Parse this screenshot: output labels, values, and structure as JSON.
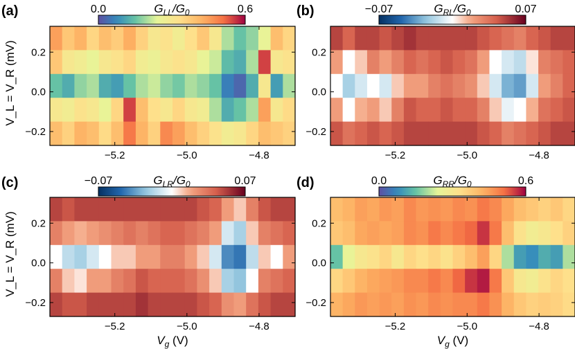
{
  "figure": {
    "xlabel_var": "V",
    "xlabel_sub": "g",
    "xlabel_unit": " (V)",
    "ylabel_text": "V_L = V_R (mV)"
  },
  "chart_data": [
    {
      "type": "heatmap",
      "panel_label": "(a)",
      "quantity": "G",
      "quantity_sub": "LL",
      "quantity_norm": "/G",
      "quantity_norm_sub": "0",
      "colormap": "spectral",
      "clim": [
        0.0,
        0.6
      ],
      "clim_labels": [
        "0.0",
        "0.6"
      ],
      "x": {
        "range": [
          -5.38,
          -4.7
        ],
        "ticks": [
          -5.2,
          -5.0,
          -4.8
        ],
        "tick_labels": [
          "−5.2",
          "−5.0",
          "−4.8"
        ]
      },
      "y": {
        "range": [
          -0.27,
          0.33
        ],
        "ticks": [
          -0.2,
          0.0,
          0.2
        ],
        "tick_labels": [
          "−0.2",
          "0.0",
          "0.2"
        ]
      },
      "cells": [
        [
          0.45,
          0.38,
          0.42,
          0.35,
          0.4,
          0.37,
          0.43,
          0.36,
          0.3,
          0.32,
          0.28,
          0.33,
          0.38,
          0.3,
          0.2,
          0.15,
          0.18,
          0.25,
          0.4,
          0.35
        ],
        [
          0.38,
          0.3,
          0.28,
          0.25,
          0.3,
          0.32,
          0.35,
          0.28,
          0.26,
          0.3,
          0.32,
          0.3,
          0.25,
          0.22,
          0.14,
          0.12,
          0.2,
          0.55,
          0.3,
          0.32
        ],
        [
          0.15,
          0.12,
          0.18,
          0.2,
          0.12,
          0.1,
          0.15,
          0.2,
          0.22,
          0.18,
          0.16,
          0.2,
          0.18,
          0.15,
          0.06,
          0.03,
          0.12,
          0.3,
          0.1,
          0.2
        ],
        [
          0.3,
          0.28,
          0.32,
          0.3,
          0.25,
          0.35,
          0.55,
          0.4,
          0.33,
          0.3,
          0.35,
          0.3,
          0.28,
          0.2,
          0.12,
          0.15,
          0.2,
          0.45,
          0.3,
          0.34
        ],
        [
          0.4,
          0.36,
          0.42,
          0.4,
          0.34,
          0.4,
          0.5,
          0.42,
          0.36,
          0.48,
          0.45,
          0.4,
          0.36,
          0.32,
          0.28,
          0.3,
          0.35,
          0.4,
          0.38,
          0.36
        ]
      ]
    },
    {
      "type": "heatmap",
      "panel_label": "(b)",
      "quantity": "G",
      "quantity_sub": "RL",
      "quantity_norm": "/G",
      "quantity_norm_sub": "0",
      "colormap": "diverging-rdbu",
      "clim": [
        -0.07,
        0.07
      ],
      "clim_labels": [
        "−0.07",
        "0.07"
      ],
      "x": {
        "range": [
          -5.38,
          -4.7
        ],
        "ticks": [
          -5.2,
          -5.0,
          -4.8
        ],
        "tick_labels": [
          "−5.2",
          "−5.0",
          "−4.8"
        ]
      },
      "y": {
        "range": [
          -0.27,
          0.33
        ],
        "ticks": [
          -0.2,
          0.0,
          0.2
        ],
        "tick_labels": [
          "−0.2",
          "0.0",
          "0.2"
        ]
      },
      "cells": [
        [
          0.05,
          0.04,
          0.05,
          0.05,
          0.045,
          0.05,
          0.055,
          0.05,
          0.05,
          0.05,
          0.05,
          0.05,
          0.045,
          0.04,
          0.035,
          0.03,
          0.04,
          0.045,
          0.05,
          0.05
        ],
        [
          0.02,
          0.0,
          0.01,
          0.03,
          0.02,
          0.03,
          0.04,
          0.035,
          0.04,
          0.045,
          0.04,
          0.035,
          0.02,
          0.0,
          -0.01,
          -0.015,
          0.005,
          0.03,
          0.035,
          0.04
        ],
        [
          0.0,
          -0.02,
          -0.01,
          0.0,
          -0.01,
          0.01,
          0.02,
          0.02,
          0.03,
          0.035,
          0.03,
          0.025,
          0.01,
          -0.01,
          -0.03,
          -0.035,
          -0.01,
          0.02,
          0.03,
          0.04
        ],
        [
          0.02,
          0.0,
          0.015,
          0.02,
          0.01,
          0.03,
          0.045,
          0.04,
          0.04,
          0.045,
          0.04,
          0.04,
          0.03,
          0.01,
          -0.005,
          0.0,
          0.015,
          0.035,
          0.04,
          0.045
        ],
        [
          0.045,
          0.035,
          0.04,
          0.045,
          0.04,
          0.045,
          0.05,
          0.05,
          0.05,
          0.05,
          0.05,
          0.05,
          0.045,
          0.04,
          0.03,
          0.035,
          0.04,
          0.045,
          0.05,
          0.05
        ]
      ]
    },
    {
      "type": "heatmap",
      "panel_label": "(c)",
      "quantity": "G",
      "quantity_sub": "LR",
      "quantity_norm": "/G",
      "quantity_norm_sub": "0",
      "colormap": "diverging-rdbu",
      "clim": [
        -0.07,
        0.07
      ],
      "clim_labels": [
        "−0.07",
        "0.07"
      ],
      "x": {
        "range": [
          -5.38,
          -4.7
        ],
        "ticks": [
          -5.2,
          -5.0,
          -4.8
        ],
        "tick_labels": [
          "−5.2",
          "−5.0",
          "−4.8"
        ]
      },
      "y": {
        "range": [
          -0.27,
          0.33
        ],
        "ticks": [
          -0.2,
          0.0,
          0.2
        ],
        "tick_labels": [
          "−0.2",
          "0.0",
          "0.2"
        ]
      },
      "cells": [
        [
          0.05,
          0.045,
          0.05,
          0.05,
          0.05,
          0.05,
          0.05,
          0.05,
          0.05,
          0.05,
          0.05,
          0.05,
          0.045,
          0.04,
          0.02,
          0.01,
          0.03,
          0.045,
          0.05,
          0.05
        ],
        [
          0.03,
          0.02,
          0.015,
          0.02,
          0.025,
          0.03,
          0.035,
          0.03,
          0.035,
          0.04,
          0.04,
          0.035,
          0.03,
          0.02,
          -0.01,
          -0.02,
          0.01,
          0.03,
          0.035,
          0.04
        ],
        [
          0.0,
          -0.015,
          -0.02,
          -0.01,
          0.0,
          0.01,
          0.01,
          0.02,
          0.02,
          0.03,
          0.03,
          0.02,
          0.01,
          -0.01,
          -0.04,
          -0.045,
          -0.015,
          0.01,
          0.0,
          0.02
        ],
        [
          0.03,
          0.01,
          0.005,
          0.02,
          0.02,
          0.03,
          0.035,
          0.045,
          0.04,
          0.04,
          0.04,
          0.035,
          0.025,
          0.01,
          -0.02,
          -0.025,
          0.0,
          0.03,
          0.035,
          0.04
        ],
        [
          0.05,
          0.045,
          0.045,
          0.05,
          0.05,
          0.05,
          0.05,
          0.055,
          0.05,
          0.05,
          0.05,
          0.05,
          0.045,
          0.04,
          0.025,
          0.02,
          0.035,
          0.045,
          0.05,
          0.05
        ]
      ]
    },
    {
      "type": "heatmap",
      "panel_label": "(d)",
      "quantity": "G",
      "quantity_sub": "RR",
      "quantity_norm": "/G",
      "quantity_norm_sub": "0",
      "colormap": "spectral",
      "clim": [
        0.0,
        0.6
      ],
      "clim_labels": [
        "0.0",
        "0.6"
      ],
      "x": {
        "range": [
          -5.38,
          -4.7
        ],
        "ticks": [
          -5.2,
          -5.0,
          -4.8
        ],
        "tick_labels": [
          "−5.2",
          "−5.0",
          "−4.8"
        ]
      },
      "y": {
        "range": [
          -0.27,
          0.33
        ],
        "ticks": [
          -0.2,
          0.0,
          0.2
        ],
        "tick_labels": [
          "−0.2",
          "0.0",
          "0.2"
        ]
      },
      "cells": [
        [
          0.4,
          0.42,
          0.45,
          0.44,
          0.46,
          0.45,
          0.48,
          0.46,
          0.47,
          0.46,
          0.48,
          0.47,
          0.5,
          0.48,
          0.44,
          0.4,
          0.38,
          0.36,
          0.38,
          0.35
        ],
        [
          0.38,
          0.4,
          0.44,
          0.45,
          0.44,
          0.45,
          0.48,
          0.47,
          0.5,
          0.48,
          0.5,
          0.52,
          0.56,
          0.5,
          0.4,
          0.32,
          0.28,
          0.3,
          0.33,
          0.36
        ],
        [
          0.15,
          0.25,
          0.3,
          0.32,
          0.35,
          0.3,
          0.35,
          0.33,
          0.35,
          0.32,
          0.36,
          0.4,
          0.45,
          0.35,
          0.2,
          0.1,
          0.08,
          0.12,
          0.1,
          0.2
        ],
        [
          0.35,
          0.38,
          0.42,
          0.44,
          0.45,
          0.46,
          0.48,
          0.48,
          0.5,
          0.48,
          0.52,
          0.56,
          0.58,
          0.5,
          0.38,
          0.3,
          0.28,
          0.32,
          0.35,
          0.33
        ],
        [
          0.42,
          0.44,
          0.46,
          0.45,
          0.46,
          0.45,
          0.47,
          0.46,
          0.48,
          0.47,
          0.48,
          0.48,
          0.5,
          0.47,
          0.42,
          0.38,
          0.36,
          0.37,
          0.36,
          0.34
        ]
      ]
    }
  ]
}
